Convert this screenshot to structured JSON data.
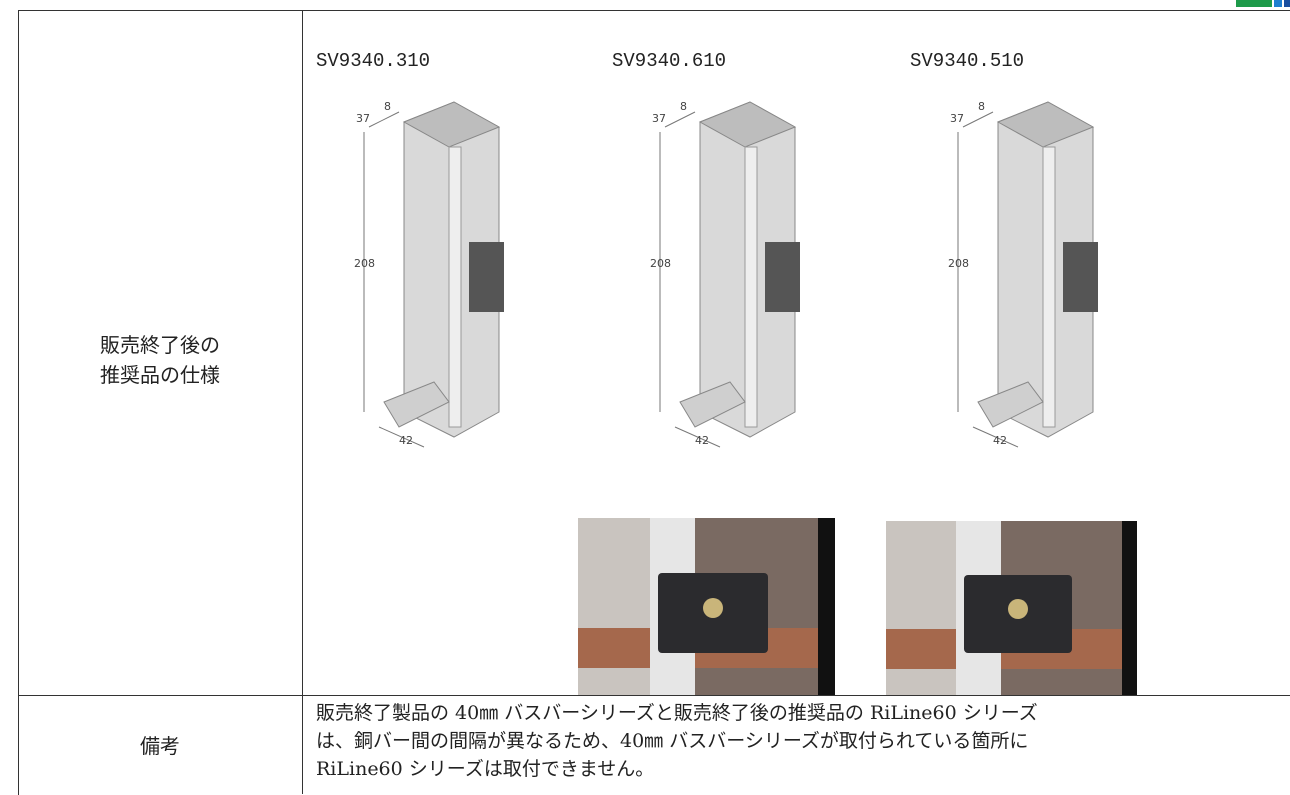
{
  "table": {
    "rows": [
      {
        "label_lines": [
          "販売終了後の",
          "推奨品の仕様"
        ],
        "products": [
          {
            "code": "SV9340.310",
            "dims": [
              "8",
              "37",
              "208",
              "42"
            ]
          },
          {
            "code": "SV9340.610",
            "dims": [
              "8",
              "37",
              "208",
              "42"
            ]
          },
          {
            "code": "SV9340.510",
            "dims": [
              "8",
              "37",
              "208",
              "42"
            ]
          }
        ]
      },
      {
        "label": "備考",
        "text_lines": [
          "販売終了製品の 40㎜ バスバーシリーズと販売終了後の推奨品の RiLine60 シリーズ",
          "は、銅バー間の間隔が異なるため、40㎜ バスバーシリーズが取付られている箇所に",
          "RiLine60 シリーズは取付できません。"
        ]
      }
    ]
  }
}
